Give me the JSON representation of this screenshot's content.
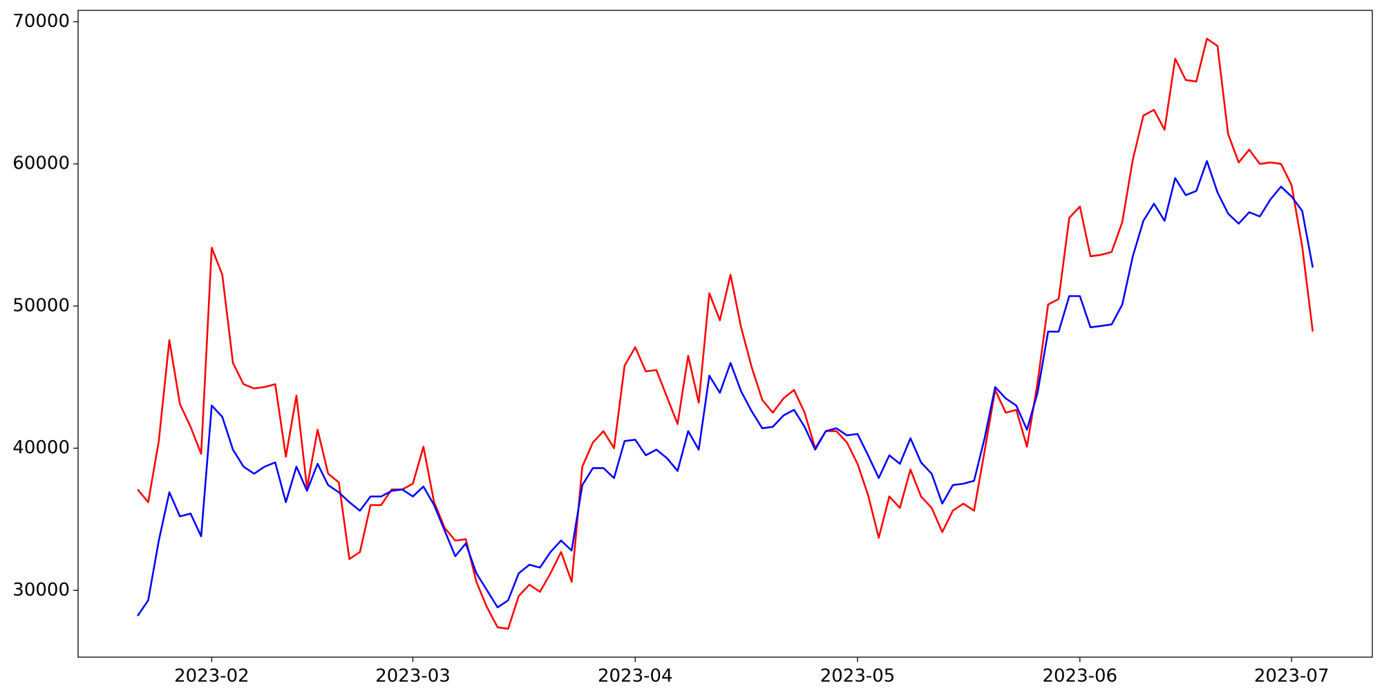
{
  "chart_data": {
    "type": "line",
    "categories": [
      null,
      null,
      null,
      null,
      null,
      null,
      null,
      "2023-02",
      null,
      null,
      null,
      null,
      null,
      null,
      null,
      null,
      null,
      null,
      null,
      null,
      null,
      null,
      null,
      null,
      null,
      null,
      "2023-03",
      null,
      null,
      null,
      null,
      null,
      null,
      null,
      null,
      null,
      null,
      null,
      null,
      null,
      null,
      null,
      null,
      null,
      null,
      null,
      null,
      "2023-04",
      null,
      null,
      null,
      null,
      null,
      null,
      null,
      null,
      null,
      null,
      null,
      null,
      null,
      null,
      null,
      null,
      null,
      null,
      null,
      null,
      "2023-05",
      null,
      null,
      null,
      null,
      null,
      null,
      null,
      null,
      null,
      null,
      null,
      null,
      null,
      null,
      null,
      null,
      null,
      null,
      null,
      null,
      "2023-06",
      null,
      null,
      null,
      null,
      null,
      null,
      null,
      null,
      null,
      null,
      null,
      null,
      null,
      null,
      null,
      null,
      null,
      null,
      null,
      "2023-07",
      null,
      null
    ],
    "series": [
      {
        "color": "#ff0000",
        "values": [
          37100,
          36200,
          40500,
          47600,
          43100,
          41500,
          39600,
          54100,
          52200,
          46000,
          44500,
          44200,
          44300,
          44500,
          39400,
          43700,
          37200,
          41300,
          38200,
          37600,
          32200,
          32700,
          36000,
          36000,
          37100,
          37100,
          37500,
          40100,
          36200,
          34400,
          33500,
          33600,
          30600,
          28800,
          27400,
          27300,
          29600,
          30400,
          29900,
          31200,
          32700,
          30600,
          38700,
          40400,
          41200,
          40000,
          45800,
          47100,
          45400,
          45500,
          43600,
          41700,
          46500,
          43200,
          50900,
          49000,
          52200,
          48500,
          45700,
          43400,
          42500,
          43500,
          44100,
          42500,
          40000,
          41200,
          41200,
          40400,
          38900,
          36700,
          33700,
          36600,
          35800,
          38500,
          36600,
          35800,
          34100,
          35600,
          36100,
          35600,
          39800,
          44100,
          42500,
          42700,
          40100,
          44600,
          50100,
          50500,
          56200,
          57000,
          53500,
          53600,
          53800,
          55900,
          60300,
          63400,
          63800,
          62400,
          67400,
          65900,
          65800,
          68800,
          68300,
          62100,
          60100,
          61000,
          60000,
          60100,
          60000,
          58500,
          54200,
          48200
        ]
      },
      {
        "color": "#0000ff",
        "values": [
          28200,
          29300,
          33500,
          36900,
          35200,
          35400,
          33800,
          43000,
          42200,
          39900,
          38700,
          38200,
          38700,
          39000,
          36200,
          38700,
          37000,
          38900,
          37400,
          36900,
          36200,
          35600,
          36600,
          36600,
          37000,
          37100,
          36600,
          37300,
          36000,
          34200,
          32400,
          33300,
          31200,
          30000,
          28800,
          29300,
          31200,
          31800,
          31600,
          32700,
          33500,
          32800,
          37400,
          38600,
          38600,
          37900,
          40500,
          40600,
          39500,
          39900,
          39300,
          38400,
          41200,
          39900,
          45100,
          43900,
          46000,
          44000,
          42600,
          41400,
          41500,
          42300,
          42700,
          41500,
          39900,
          41200,
          41400,
          40900,
          41000,
          39500,
          37900,
          39500,
          38900,
          40700,
          39000,
          38200,
          36100,
          37400,
          37500,
          37700,
          40700,
          44300,
          43500,
          43000,
          41300,
          43900,
          48200,
          48200,
          50700,
          50700,
          48500,
          48600,
          48700,
          50100,
          53500,
          56000,
          57200,
          56000,
          59000,
          57800,
          58100,
          60200,
          58000,
          56500,
          55800,
          56600,
          56300,
          57500,
          58400,
          57700,
          56700,
          52700
        ]
      }
    ],
    "ylim": [
      25300,
      70800
    ],
    "yticks": [
      30000,
      40000,
      50000,
      60000,
      70000
    ],
    "grid": false
  }
}
